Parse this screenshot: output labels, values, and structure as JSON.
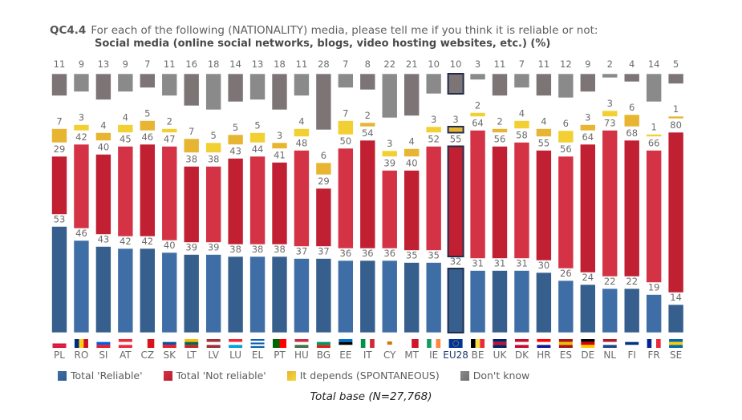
{
  "header": {
    "code": "QC4.4",
    "question": "For each of the following (NATIONALITY) media, please tell me if you think it is reliable or not:",
    "subtitle": "Social media (online social networks, blogs, video hosting websites, etc.)  (%)"
  },
  "footer": {
    "base": "Total base (N=27,768)"
  },
  "colors": {
    "reliable": "#3f6ea6",
    "reliable_dark": "#365f8d",
    "not_reliable": "#d33344",
    "not_reliable_dark": "#c12033",
    "depends": "#f2d033",
    "depends_dark": "#e8b532",
    "dont_know": "#8a8a8a",
    "dont_know_dark": "#7d7476",
    "highlight_border": "#1f2d4d"
  },
  "chart_data": {
    "type": "bar",
    "stacking": "separate-columns",
    "title": "Social media (online social networks, blogs, video hosting websites, etc.)  (%)",
    "categories": [
      "PL",
      "RO",
      "SI",
      "AT",
      "CZ",
      "SK",
      "LT",
      "LV",
      "LU",
      "EL",
      "PT",
      "HU",
      "BG",
      "EE",
      "IT",
      "CY",
      "MT",
      "IE",
      "EU28",
      "BE",
      "UK",
      "DK",
      "HR",
      "ES",
      "DE",
      "NL",
      "FI",
      "FR",
      "SE"
    ],
    "highlight": "EU28",
    "series": [
      {
        "name": "Total 'Reliable'",
        "key": "reliable",
        "values": [
          53,
          46,
          43,
          42,
          42,
          40,
          39,
          39,
          38,
          38,
          38,
          37,
          37,
          36,
          36,
          36,
          35,
          35,
          32,
          31,
          31,
          31,
          30,
          26,
          24,
          22,
          22,
          19,
          14
        ]
      },
      {
        "name": "Total 'Not reliable'",
        "key": "not_reliable",
        "values": [
          29,
          42,
          40,
          45,
          46,
          47,
          38,
          38,
          43,
          44,
          41,
          48,
          29,
          50,
          54,
          39,
          40,
          52,
          55,
          64,
          56,
          58,
          55,
          56,
          64,
          73,
          68,
          66,
          80
        ]
      },
      {
        "name": "It depends (SPONTANEOUS)",
        "key": "depends",
        "values": [
          7,
          3,
          4,
          4,
          5,
          2,
          7,
          5,
          5,
          5,
          3,
          4,
          6,
          7,
          2,
          3,
          4,
          3,
          3,
          2,
          2,
          4,
          4,
          6,
          3,
          3,
          6,
          1,
          1
        ]
      },
      {
        "name": "Don't know",
        "key": "dont_know",
        "values": [
          11,
          9,
          13,
          9,
          7,
          11,
          16,
          18,
          14,
          13,
          18,
          11,
          28,
          7,
          8,
          22,
          21,
          10,
          10,
          3,
          11,
          7,
          11,
          12,
          9,
          2,
          4,
          14,
          5
        ]
      }
    ],
    "legend_position": "bottom",
    "grid": false,
    "ylim": [
      0,
      100
    ]
  },
  "legend": [
    {
      "label": "Total 'Reliable'",
      "color": "#3f6ea6"
    },
    {
      "label": "Total 'Not reliable'",
      "color": "#d33344"
    },
    {
      "label": "It depends (SPONTANEOUS)",
      "color": "#f2d033"
    },
    {
      "label": "Don't know",
      "color": "#8a8a8a"
    }
  ]
}
